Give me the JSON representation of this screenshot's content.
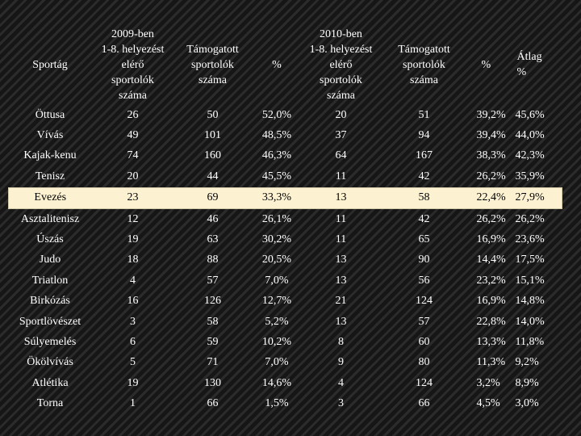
{
  "headers": {
    "sport": "Sportág",
    "y2009_count": "2009-ben\n1-8. helyezést\nelérő\nsportolók\nszáma",
    "y2009_supported": "Támogatott\nsportolók\nszáma",
    "y2009_pct": "%",
    "y2010_count": "2010-ben\n1-8. helyezést\nelérő\nsportolók\nszáma",
    "y2010_supported": "Támogatott\nsportolók\nszáma",
    "y2010_pct": "%",
    "avg": "Átlag\n%"
  },
  "rows": [
    {
      "sport": "Öttusa",
      "c09": "26",
      "s09": "50",
      "p09": "52,0%",
      "c10": "20",
      "s10": "51",
      "p10": "39,2%",
      "avg": "45,6%"
    },
    {
      "sport": "Vívás",
      "c09": "49",
      "s09": "101",
      "p09": "48,5%",
      "c10": "37",
      "s10": "94",
      "p10": "39,4%",
      "avg": "44,0%"
    },
    {
      "sport": "Kajak-kenu",
      "c09": "74",
      "s09": "160",
      "p09": "46,3%",
      "c10": "64",
      "s10": "167",
      "p10": "38,3%",
      "avg": "42,3%"
    },
    {
      "sport": "Tenisz",
      "c09": "20",
      "s09": "44",
      "p09": "45,5%",
      "c10": "11",
      "s10": "42",
      "p10": "26,2%",
      "avg": "35,9%"
    },
    {
      "sport": "Evezés",
      "c09": "23",
      "s09": "69",
      "p09": "33,3%",
      "c10": "13",
      "s10": "58",
      "p10": "22,4%",
      "avg": "27,9%"
    },
    {
      "sport": "Asztalitenisz",
      "c09": "12",
      "s09": "46",
      "p09": "26,1%",
      "c10": "11",
      "s10": "42",
      "p10": "26,2%",
      "avg": "26,2%"
    },
    {
      "sport": "Úszás",
      "c09": "19",
      "s09": "63",
      "p09": "30,2%",
      "c10": "11",
      "s10": "65",
      "p10": "16,9%",
      "avg": "23,6%"
    },
    {
      "sport": "Judo",
      "c09": "18",
      "s09": "88",
      "p09": "20,5%",
      "c10": "13",
      "s10": "90",
      "p10": "14,4%",
      "avg": "17,5%"
    },
    {
      "sport": "Triatlon",
      "c09": "4",
      "s09": "57",
      "p09": "7,0%",
      "c10": "13",
      "s10": "56",
      "p10": "23,2%",
      "avg": "15,1%"
    },
    {
      "sport": "Birkózás",
      "c09": "16",
      "s09": "126",
      "p09": "12,7%",
      "c10": "21",
      "s10": "124",
      "p10": "16,9%",
      "avg": "14,8%"
    },
    {
      "sport": "Sportlövészet",
      "c09": "3",
      "s09": "58",
      "p09": "5,2%",
      "c10": "13",
      "s10": "57",
      "p10": "22,8%",
      "avg": "14,0%"
    },
    {
      "sport": "Súlyemelés",
      "c09": "6",
      "s09": "59",
      "p09": "10,2%",
      "c10": "8",
      "s10": "60",
      "p10": "13,3%",
      "avg": "11,8%"
    },
    {
      "sport": "Ökölvívás",
      "c09": "5",
      "s09": "71",
      "p09": "7,0%",
      "c10": "9",
      "s10": "80",
      "p10": "11,3%",
      "avg": "9,2%"
    },
    {
      "sport": "Atlétika",
      "c09": "19",
      "s09": "130",
      "p09": "14,6%",
      "c10": "4",
      "s10": "124",
      "p10": "3,2%",
      "avg": "8,9%"
    },
    {
      "sport": "Torna",
      "c09": "1",
      "s09": "66",
      "p09": "1,5%",
      "c10": "3",
      "s10": "66",
      "p10": "4,5%",
      "avg": "3,0%"
    }
  ],
  "highlight_row": "Evezés",
  "colors": {
    "background": "#1e1e1e",
    "text": "#ffffff",
    "highlight_background": "#fcf2d2",
    "highlight_text": "#000000"
  }
}
